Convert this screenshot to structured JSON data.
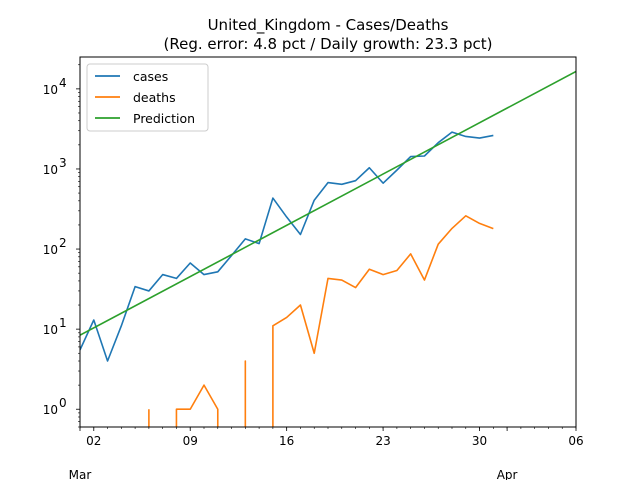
{
  "chart_data": {
    "type": "line",
    "title": "United_Kingdom - Cases/Deaths",
    "subtitle": "(Reg. error: 4.8 pct / Daily growth: 23.3 pct)",
    "xlabel": "",
    "ylabel": "",
    "yscale": "log",
    "xlim": [
      "2020-03-01",
      "2020-04-06"
    ],
    "ylim": [
      0.6,
      25000
    ],
    "x_ticks": [
      "02",
      "09",
      "16",
      "23",
      "30",
      "06"
    ],
    "x_tick_dates": [
      "2020-03-02",
      "2020-03-09",
      "2020-03-16",
      "2020-03-23",
      "2020-03-30",
      "2020-04-06"
    ],
    "x_month_labels": [
      {
        "date": "2020-03-01",
        "label": "Mar"
      },
      {
        "date": "2020-04-01",
        "label": "Apr"
      }
    ],
    "y_ticks": [
      {
        "value": 1,
        "base": "10",
        "exp": "0"
      },
      {
        "value": 10,
        "base": "10",
        "exp": "1"
      },
      {
        "value": 100,
        "base": "10",
        "exp": "2"
      },
      {
        "value": 1000,
        "base": "10",
        "exp": "3"
      },
      {
        "value": 10000,
        "base": "10",
        "exp": "4"
      }
    ],
    "grid": false,
    "legend_position": "top-left",
    "series": [
      {
        "name": "cases",
        "color": "#1f77b4",
        "points": [
          {
            "x": "2020-03-01",
            "y": 5.5
          },
          {
            "x": "2020-03-02",
            "y": 13
          },
          {
            "x": "2020-03-03",
            "y": 4
          },
          {
            "x": "2020-03-04",
            "y": 11
          },
          {
            "x": "2020-03-05",
            "y": 34
          },
          {
            "x": "2020-03-06",
            "y": 30
          },
          {
            "x": "2020-03-07",
            "y": 48
          },
          {
            "x": "2020-03-08",
            "y": 43
          },
          {
            "x": "2020-03-09",
            "y": 67
          },
          {
            "x": "2020-03-10",
            "y": 48
          },
          {
            "x": "2020-03-11",
            "y": 52
          },
          {
            "x": "2020-03-12",
            "y": 83
          },
          {
            "x": "2020-03-13",
            "y": 134
          },
          {
            "x": "2020-03-14",
            "y": 117
          },
          {
            "x": "2020-03-15",
            "y": 433
          },
          {
            "x": "2020-03-16",
            "y": 251
          },
          {
            "x": "2020-03-17",
            "y": 152
          },
          {
            "x": "2020-03-18",
            "y": 407
          },
          {
            "x": "2020-03-19",
            "y": 676
          },
          {
            "x": "2020-03-20",
            "y": 643
          },
          {
            "x": "2020-03-21",
            "y": 714
          },
          {
            "x": "2020-03-22",
            "y": 1035
          },
          {
            "x": "2020-03-23",
            "y": 665
          },
          {
            "x": "2020-03-24",
            "y": 967
          },
          {
            "x": "2020-03-25",
            "y": 1427
          },
          {
            "x": "2020-03-26",
            "y": 1452
          },
          {
            "x": "2020-03-27",
            "y": 2129
          },
          {
            "x": "2020-03-28",
            "y": 2885
          },
          {
            "x": "2020-03-29",
            "y": 2546
          },
          {
            "x": "2020-03-30",
            "y": 2433
          },
          {
            "x": "2020-03-31",
            "y": 2619
          }
        ]
      },
      {
        "name": "deaths",
        "color": "#ff7f0e",
        "segments": [
          [
            {
              "x": "2020-03-06",
              "y": 1
            },
            {
              "x": "2020-03-06",
              "y": 0.6
            }
          ],
          [
            {
              "x": "2020-03-08",
              "y": 0.6
            },
            {
              "x": "2020-03-08",
              "y": 1
            },
            {
              "x": "2020-03-09",
              "y": 1
            },
            {
              "x": "2020-03-10",
              "y": 2
            },
            {
              "x": "2020-03-11",
              "y": 1
            },
            {
              "x": "2020-03-11",
              "y": 0.6
            }
          ],
          [
            {
              "x": "2020-03-13",
              "y": 0.6
            },
            {
              "x": "2020-03-13",
              "y": 4
            },
            {
              "x": "2020-03-13",
              "y": 0.6
            }
          ],
          [
            {
              "x": "2020-03-15",
              "y": 0.6
            },
            {
              "x": "2020-03-15",
              "y": 11
            },
            {
              "x": "2020-03-16",
              "y": 14
            },
            {
              "x": "2020-03-17",
              "y": 20
            },
            {
              "x": "2020-03-18",
              "y": 5
            },
            {
              "x": "2020-03-19",
              "y": 43
            },
            {
              "x": "2020-03-20",
              "y": 41
            },
            {
              "x": "2020-03-21",
              "y": 33
            },
            {
              "x": "2020-03-22",
              "y": 56
            },
            {
              "x": "2020-03-23",
              "y": 48
            },
            {
              "x": "2020-03-24",
              "y": 54
            },
            {
              "x": "2020-03-25",
              "y": 87
            },
            {
              "x": "2020-03-26",
              "y": 41
            },
            {
              "x": "2020-03-27",
              "y": 115
            },
            {
              "x": "2020-03-28",
              "y": 181
            },
            {
              "x": "2020-03-29",
              "y": 260
            },
            {
              "x": "2020-03-30",
              "y": 209
            },
            {
              "x": "2020-03-31",
              "y": 180
            }
          ]
        ]
      },
      {
        "name": "Prediction",
        "color": "#2ca02c",
        "points": [
          {
            "x": "2020-03-01",
            "y": 8.4
          },
          {
            "x": "2020-04-06",
            "y": 16500
          }
        ]
      }
    ]
  }
}
